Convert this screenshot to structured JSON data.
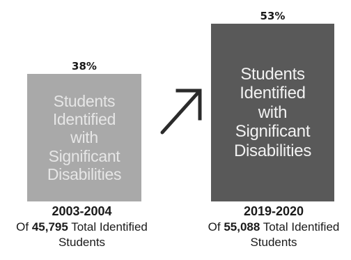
{
  "chart_data": {
    "type": "bar",
    "categories": [
      "2003-2004",
      "2019-2020"
    ],
    "values": [
      38,
      53
    ],
    "value_labels": [
      "38%",
      "53%"
    ],
    "bar_text": "Students\nIdentified\nwith\nSignificant\nDisabilities",
    "captions": [
      {
        "year": "2003-2004",
        "prefix": "Of ",
        "number": "45,795",
        "suffix": " Total Identified",
        "line3": "Students"
      },
      {
        "year": "2019-2020",
        "prefix": "Of ",
        "number": "55,088",
        "suffix": " Total Identified",
        "line3": "Students"
      }
    ],
    "colors": [
      "#a9a9a9",
      "#595959"
    ],
    "arrow": "up-right-arrow-icon",
    "legend": "none",
    "grid": false
  }
}
